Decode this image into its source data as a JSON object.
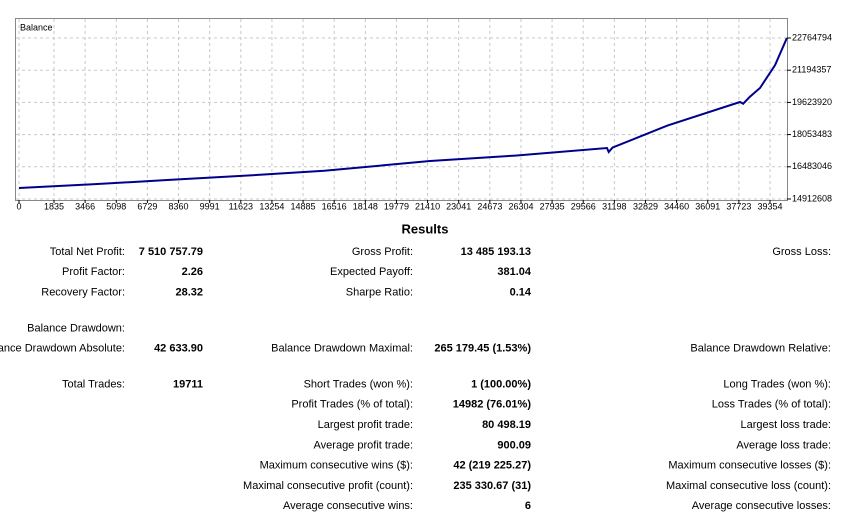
{
  "chart_data": {
    "type": "line",
    "title": "Balance",
    "x": [
      0,
      4000,
      8000,
      12000,
      16000,
      21537,
      26000,
      30810,
      30900,
      31100,
      34000,
      37780,
      37950,
      38300,
      38830,
      39620,
      40240
    ],
    "series": [
      {
        "name": "Balance",
        "color": "#00008b",
        "values": [
          15449000,
          15640000,
          15850000,
          16060000,
          16290000,
          16766000,
          17030000,
          17400000,
          17205000,
          17420000,
          18500000,
          19643000,
          19560000,
          19900000,
          20326000,
          21447000,
          22764794
        ]
      }
    ],
    "xlim": [
      0,
      40245
    ],
    "ylim": [
      14766000,
      23740000
    ],
    "xticks": [
      0,
      1835,
      3466,
      5098,
      6729,
      8360,
      9991,
      11623,
      13254,
      14885,
      16516,
      18148,
      19779,
      21410,
      23041,
      24673,
      26304,
      27935,
      29566,
      31198,
      32829,
      34460,
      36091,
      37723,
      39354
    ],
    "yticks": [
      14912608,
      16483046,
      18053483,
      19623920,
      21194357,
      22764794
    ],
    "grid": true
  },
  "results": {
    "title": "Results",
    "groups": [
      [
        {
          "left": {
            "label": "Total Net Profit:",
            "value": "7 510 757.79"
          },
          "middle": {
            "label": "Gross Profit:",
            "value": "13 485 193.13"
          },
          "right": {
            "label": "Gross Loss:"
          }
        },
        {
          "left": {
            "label": "Profit Factor:",
            "value": "2.26"
          },
          "middle": {
            "label": "Expected Payoff:",
            "value": "381.04"
          }
        },
        {
          "left": {
            "label": "Recovery Factor:",
            "value": "28.32"
          },
          "middle": {
            "label": "Sharpe Ratio:",
            "value": "0.14"
          }
        }
      ],
      [
        {
          "left": {
            "label": "Balance Drawdown:"
          }
        },
        {
          "left": {
            "label": "Balance Drawdown Absolute:",
            "value": "42 633.90"
          },
          "middle": {
            "label": "Balance Drawdown Maximal:",
            "value": "265 179.45 (1.53%)"
          },
          "right": {
            "label": "Balance Drawdown Relative:"
          }
        }
      ],
      [
        {
          "left": {
            "label": "Total Trades:",
            "value": "19711"
          },
          "middle": {
            "label": "Short Trades (won %):",
            "value": "1 (100.00%)"
          },
          "right": {
            "label": "Long Trades (won %):"
          }
        },
        {
          "middle": {
            "label": "Profit Trades (% of total):",
            "value": "14982 (76.01%)"
          },
          "right": {
            "label": "Loss Trades (% of total):"
          }
        },
        {
          "middle": {
            "label": "Largest profit trade:",
            "value": "80 498.19"
          },
          "right": {
            "label": "Largest loss trade:"
          }
        },
        {
          "middle": {
            "label": "Average profit trade:",
            "value": "900.09"
          },
          "right": {
            "label": "Average loss trade:"
          }
        },
        {
          "middle": {
            "label": "Maximum consecutive wins ($):",
            "value": "42 (219 225.27)"
          },
          "right": {
            "label": "Maximum consecutive losses ($):"
          }
        },
        {
          "middle": {
            "label": "Maximal consecutive profit (count):",
            "value": "235 330.67 (31)"
          },
          "right": {
            "label": "Maximal consecutive loss (count):"
          }
        },
        {
          "middle": {
            "label": "Average consecutive wins:",
            "value": "6"
          },
          "right": {
            "label": "Average consecutive losses:"
          }
        }
      ]
    ]
  }
}
